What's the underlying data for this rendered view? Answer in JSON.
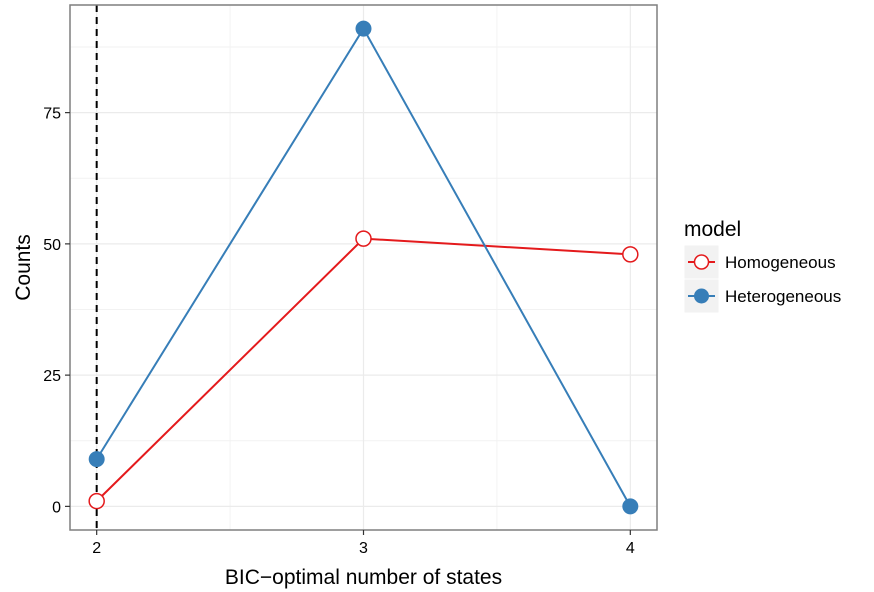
{
  "chart_data": {
    "type": "line",
    "x": [
      2,
      3,
      4
    ],
    "xlabel": "BIC−optimal number of states",
    "ylabel": "Counts",
    "xlim": [
      1.9,
      4.1
    ],
    "ylim": [
      -4.5,
      95.5
    ],
    "x_ticks": [
      2,
      3,
      4
    ],
    "x_tick_labels": [
      "2",
      "3",
      "4"
    ],
    "y_ticks": [
      0,
      25,
      50,
      75
    ],
    "y_tick_labels": [
      "0",
      "25",
      "50",
      "75"
    ],
    "grid": true,
    "reference_line": {
      "x": 2,
      "style": "dashed",
      "color": "#000000"
    },
    "legend": {
      "title": "model",
      "position": "right"
    },
    "series": [
      {
        "name": "Homogeneous",
        "values": [
          1,
          51,
          48
        ],
        "color": "#e41a1c",
        "marker": "open-circle"
      },
      {
        "name": "Heterogeneous",
        "values": [
          9,
          91,
          0
        ],
        "color": "#377eb8",
        "marker": "filled-circle"
      }
    ]
  }
}
